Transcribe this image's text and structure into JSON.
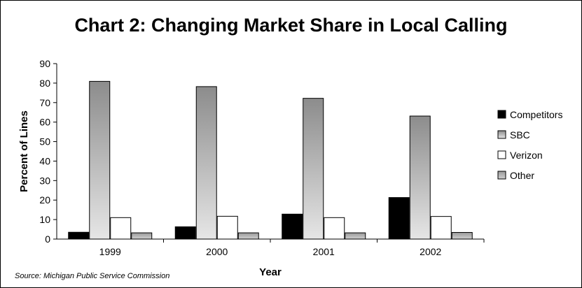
{
  "chart_data": {
    "type": "bar",
    "title": "Chart 2: Changing Market Share in Local Calling",
    "xlabel": "Year",
    "ylabel": "Percent of Lines",
    "categories": [
      "1999",
      "2000",
      "2001",
      "2002"
    ],
    "ylim": [
      0,
      90
    ],
    "yticks": [
      0,
      10,
      20,
      30,
      40,
      50,
      60,
      70,
      80,
      90
    ],
    "grid": false,
    "legend_position": "right",
    "series": [
      {
        "name": "Competitors",
        "values": [
          3.5,
          6.3,
          12.8,
          21.3
        ],
        "color": "#000000"
      },
      {
        "name": "SBC",
        "values": [
          80.9,
          78.2,
          72.2,
          63.1
        ],
        "color": "#a0a0a0"
      },
      {
        "name": "Verizon",
        "values": [
          11.0,
          11.7,
          11.0,
          11.6
        ],
        "color": "#ffffff"
      },
      {
        "name": "Other",
        "values": [
          3.2,
          3.2,
          3.2,
          3.4
        ],
        "color": "#b4b4b4"
      }
    ],
    "source": "Source: Michigan Public Service Commission"
  }
}
